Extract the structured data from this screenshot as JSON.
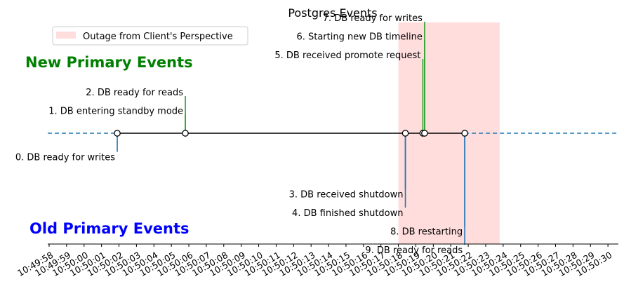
{
  "chart_data": {
    "type": "timeline",
    "title": "Postgres Events",
    "legend": {
      "label": "Outage from Client's Perspective",
      "color": "#ffdddd",
      "placement": "top-left"
    },
    "group_labels": {
      "new_primary": {
        "text": "New Primary Events",
        "color": "#008000"
      },
      "old_primary": {
        "text": "Old Primary Events",
        "color": "#0000ff"
      }
    },
    "colors": {
      "new_primary": "#2ca02c",
      "old_primary": "#1f77b4",
      "timeline": "#000000",
      "extension": "#1f77b4"
    },
    "x_range": [
      "10:49:58",
      "10:50:31"
    ],
    "outage_span": [
      "10:50:18",
      "10:50:23.8"
    ],
    "tick_labels": [
      "10:49:58",
      "10:49:59",
      "10:50:00",
      "10:50:01",
      "10:50:02",
      "10:50:03",
      "10:50:04",
      "10:50:05",
      "10:50:06",
      "10:50:07",
      "10:50:08",
      "10:50:09",
      "10:50:10",
      "10:50:11",
      "10:50:12",
      "10:50:13",
      "10:50:14",
      "10:50:15",
      "10:50:16",
      "10:50:17",
      "10:50:18",
      "10:50:19",
      "10:50:20",
      "10:50:21",
      "10:50:22",
      "10:50:23",
      "10:50:24",
      "10:50:25",
      "10:50:26",
      "10:50:27",
      "10:50:28",
      "10:50:29",
      "10:50:30"
    ],
    "events": [
      {
        "label": "0. DB ready for writes",
        "time": "10:50:01.9",
        "group": "old_primary",
        "stem_level": -1
      },
      {
        "label": "1. DB entering standby mode",
        "time": "10:50:05.8",
        "group": "new_primary",
        "stem_level": 1
      },
      {
        "label": "2. DB ready for reads",
        "time": "10:50:05.8",
        "group": "new_primary",
        "stem_level": 2
      },
      {
        "label": "3. DB received shutdown",
        "time": "10:50:18.4",
        "group": "old_primary",
        "stem_level": -3
      },
      {
        "label": "4. DB finished shutdown",
        "time": "10:50:18.4",
        "group": "old_primary",
        "stem_level": -4
      },
      {
        "label": "5. DB received promote request",
        "time": "10:50:19.4",
        "group": "new_primary",
        "stem_level": 4
      },
      {
        "label": "6. Starting new DB timeline",
        "time": "10:50:19.5",
        "group": "new_primary",
        "stem_level": 5
      },
      {
        "label": "7. DB ready for writes",
        "time": "10:50:19.5",
        "group": "new_primary",
        "stem_level": 6
      },
      {
        "label": "8. DB restarting",
        "time": "10:50:21.8",
        "group": "old_primary",
        "stem_level": -5
      },
      {
        "label": "9. DB ready for reads",
        "time": "10:50:21.8",
        "group": "old_primary",
        "stem_level": -6
      }
    ]
  }
}
